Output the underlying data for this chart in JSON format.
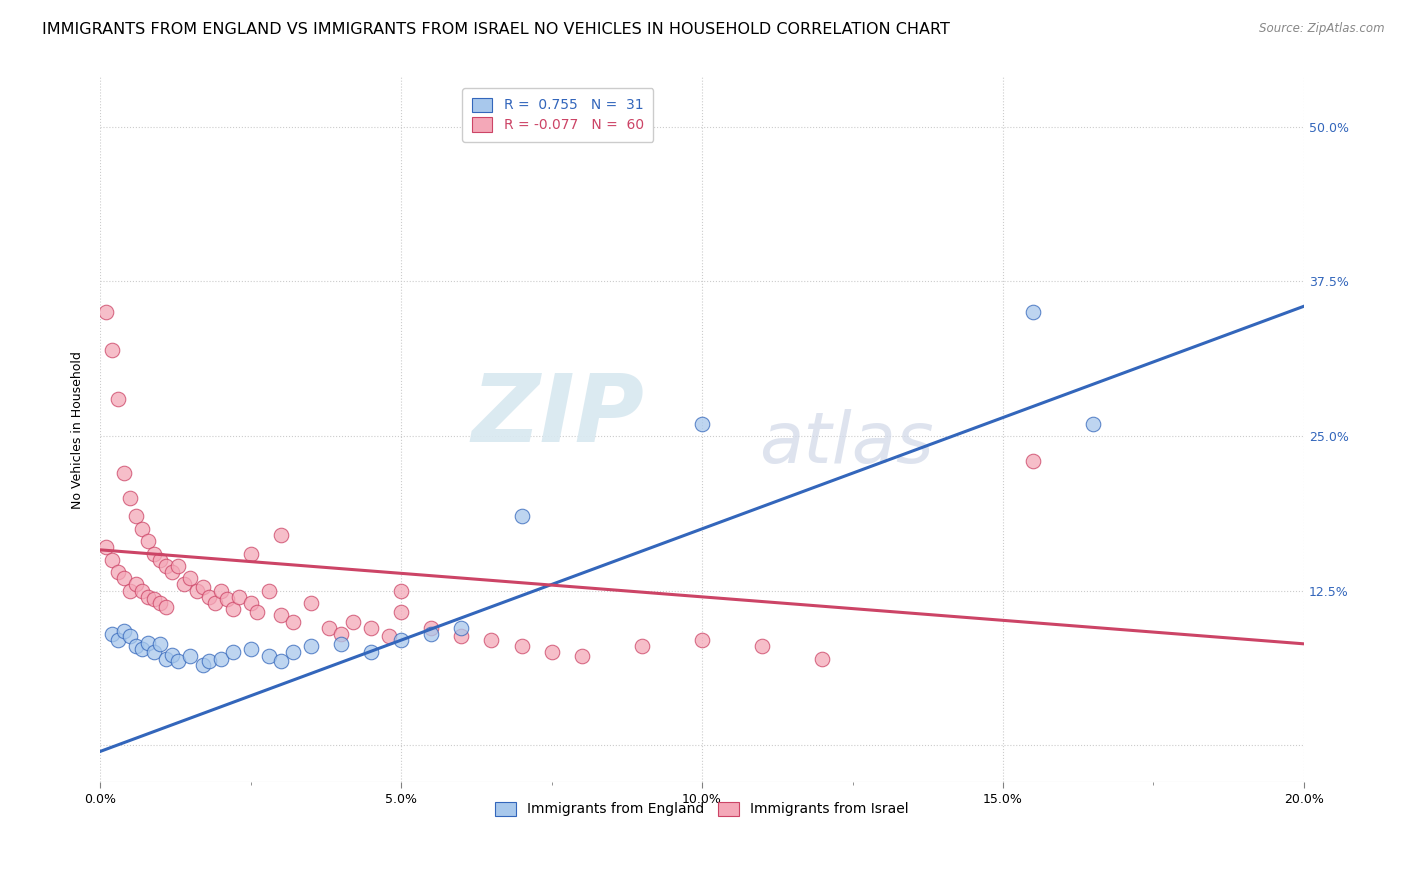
{
  "title": "IMMIGRANTS FROM ENGLAND VS IMMIGRANTS FROM ISRAEL NO VEHICLES IN HOUSEHOLD CORRELATION CHART",
  "source": "Source: ZipAtlas.com",
  "ylabel": "No Vehicles in Household",
  "xlim": [
    0.0,
    0.2
  ],
  "ylim": [
    -0.03,
    0.54
  ],
  "england_color": "#A8C8EC",
  "israel_color": "#F4A8B8",
  "england_line_color": "#3366BB",
  "israel_line_color": "#CC4466",
  "R_england": 0.755,
  "N_england": 31,
  "R_israel": -0.077,
  "N_israel": 60,
  "watermark_zip": "ZIP",
  "watermark_atlas": "atlas",
  "england_scatter_x": [
    0.002,
    0.003,
    0.004,
    0.005,
    0.006,
    0.007,
    0.008,
    0.009,
    0.01,
    0.011,
    0.012,
    0.013,
    0.015,
    0.017,
    0.018,
    0.02,
    0.022,
    0.025,
    0.028,
    0.03,
    0.032,
    0.035,
    0.04,
    0.045,
    0.05,
    0.055,
    0.06,
    0.07,
    0.1,
    0.155,
    0.165
  ],
  "england_scatter_y": [
    0.09,
    0.085,
    0.092,
    0.088,
    0.08,
    0.078,
    0.083,
    0.075,
    0.082,
    0.07,
    0.073,
    0.068,
    0.072,
    0.065,
    0.068,
    0.07,
    0.075,
    0.078,
    0.072,
    0.068,
    0.075,
    0.08,
    0.082,
    0.075,
    0.085,
    0.09,
    0.095,
    0.185,
    0.26,
    0.35,
    0.26
  ],
  "israel_scatter_x": [
    0.001,
    0.001,
    0.002,
    0.002,
    0.003,
    0.003,
    0.004,
    0.004,
    0.005,
    0.005,
    0.006,
    0.006,
    0.007,
    0.007,
    0.008,
    0.008,
    0.009,
    0.009,
    0.01,
    0.01,
    0.011,
    0.011,
    0.012,
    0.013,
    0.014,
    0.015,
    0.016,
    0.017,
    0.018,
    0.019,
    0.02,
    0.021,
    0.022,
    0.023,
    0.025,
    0.026,
    0.028,
    0.03,
    0.032,
    0.035,
    0.038,
    0.04,
    0.042,
    0.045,
    0.048,
    0.05,
    0.055,
    0.06,
    0.065,
    0.07,
    0.075,
    0.08,
    0.09,
    0.1,
    0.11,
    0.12,
    0.03,
    0.025,
    0.05,
    0.155
  ],
  "israel_scatter_y": [
    0.35,
    0.16,
    0.32,
    0.15,
    0.28,
    0.14,
    0.22,
    0.135,
    0.2,
    0.125,
    0.185,
    0.13,
    0.175,
    0.125,
    0.165,
    0.12,
    0.155,
    0.118,
    0.15,
    0.115,
    0.145,
    0.112,
    0.14,
    0.145,
    0.13,
    0.135,
    0.125,
    0.128,
    0.12,
    0.115,
    0.125,
    0.118,
    0.11,
    0.12,
    0.115,
    0.108,
    0.125,
    0.105,
    0.1,
    0.115,
    0.095,
    0.09,
    0.1,
    0.095,
    0.088,
    0.108,
    0.095,
    0.088,
    0.085,
    0.08,
    0.075,
    0.072,
    0.08,
    0.085,
    0.08,
    0.07,
    0.17,
    0.155,
    0.125,
    0.23
  ],
  "england_line_x": [
    0.0,
    0.2
  ],
  "england_line_y": [
    -0.005,
    0.355
  ],
  "israel_line_x": [
    0.0,
    0.2
  ],
  "israel_line_y": [
    0.158,
    0.082
  ],
  "background_color": "#FFFFFF",
  "grid_color": "#CCCCCC",
  "title_fontsize": 11.5,
  "axis_label_fontsize": 9,
  "tick_fontsize": 9,
  "legend_fontsize": 10
}
